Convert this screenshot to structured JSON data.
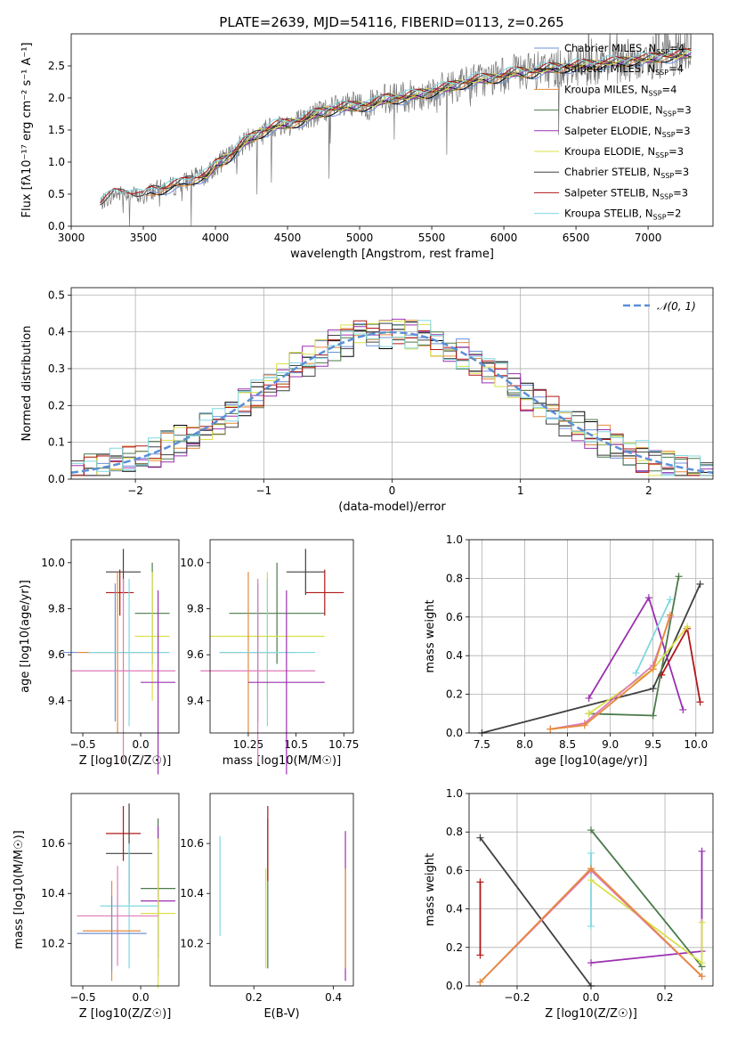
{
  "figure_title": "PLATE=2639, MJD=54116, FIBERID=0113, z=0.265",
  "chart_data": [
    {
      "id": "spectrum",
      "type": "line",
      "xlabel": "wavelength [Angstrom, rest frame]",
      "ylabel": "Flux [fλ10⁻¹⁷ erg cm⁻² s⁻¹ A⁻¹]",
      "xlim": [
        3000,
        7450
      ],
      "ylim": [
        0,
        3.0
      ],
      "xticks": [
        3000,
        3500,
        4000,
        4500,
        5000,
        5500,
        6000,
        6500,
        7000
      ],
      "yticks": [
        0.0,
        0.5,
        1.0,
        1.5,
        2.0,
        2.5
      ],
      "legend_position": "upper right",
      "model_curve": {
        "x": [
          3200,
          3300,
          3400,
          3500,
          3550,
          3650,
          3750,
          3850,
          3950,
          4000,
          4100,
          4200,
          4300,
          4400,
          4500,
          4600,
          4700,
          4800,
          4900,
          5000,
          5100,
          5200,
          5300,
          5400,
          5500,
          5600,
          5700,
          5800,
          5900,
          6000,
          6100,
          6200,
          6300,
          6400,
          6500,
          6600,
          6700,
          6800,
          6900,
          7000,
          7100,
          7200,
          7300
        ],
        "y": [
          0.35,
          0.5,
          0.52,
          0.45,
          0.55,
          0.6,
          0.65,
          0.75,
          0.8,
          0.95,
          1.1,
          1.3,
          1.45,
          1.55,
          1.6,
          1.65,
          1.75,
          1.82,
          1.85,
          1.88,
          1.9,
          2.0,
          2.0,
          2.05,
          2.1,
          2.15,
          2.22,
          2.28,
          2.3,
          2.35,
          2.4,
          2.4,
          2.45,
          2.48,
          2.5,
          2.52,
          2.55,
          2.55,
          2.6,
          2.6,
          2.65,
          2.65,
          2.7
        ]
      },
      "series": [
        {
          "name": "Chabrier MILES",
          "nssp": "4",
          "color": "#6f90d8"
        },
        {
          "name": "Salpeter MILES",
          "nssp": "4",
          "color": "#000000"
        },
        {
          "name": "Kroupa MILES",
          "nssp": "4",
          "color": "#e58a3a"
        },
        {
          "name": "Chabrier ELODIE",
          "nssp": "3",
          "color": "#4c7a4c"
        },
        {
          "name": "Salpeter ELODIE",
          "nssp": "3",
          "color": "#9b30b0"
        },
        {
          "name": "Kroupa ELODIE",
          "nssp": "3",
          "color": "#d9e04a"
        },
        {
          "name": "Chabrier STELIB",
          "nssp": "3",
          "color": "#404040"
        },
        {
          "name": "Salpeter STELIB",
          "nssp": "3",
          "color": "#b01818"
        },
        {
          "name": "Kroupa STELIB",
          "nssp": "2",
          "color": "#7fd8e0"
        }
      ]
    },
    {
      "id": "residuals",
      "type": "histogram",
      "xlabel": "(data-model)/error",
      "ylabel": "Normed distribution",
      "xlim": [
        -2.5,
        2.5
      ],
      "ylim": [
        0,
        0.52
      ],
      "xticks": [
        -2,
        -1,
        0,
        1,
        2
      ],
      "yticks": [
        0.0,
        0.1,
        0.2,
        0.3,
        0.4,
        0.5
      ],
      "grid": true,
      "legend_position": "upper right",
      "gauss_label": "𝒩(0, 1)",
      "gauss_color": "#5b8fd6"
    },
    {
      "id": "age_vs_Z",
      "type": "errorbar",
      "xlabel": "Z [log10(Z/Z☉)]",
      "ylabel": "age  [log10(age/yr)]",
      "xlim": [
        -0.6,
        0.33
      ],
      "ylim": [
        9.26,
        10.1
      ],
      "xticks": [
        -0.5,
        0.0
      ],
      "yticks": [
        9.4,
        9.6,
        9.8,
        10.0
      ],
      "points": [
        {
          "color": "#404040",
          "x": -0.15,
          "xerr": 0.15,
          "y": 9.96,
          "yerr": 0.1
        },
        {
          "color": "#b01818",
          "x": -0.18,
          "xerr": 0.12,
          "y": 9.87,
          "yerr": 0.1
        },
        {
          "color": "#4c7a4c",
          "x": 0.1,
          "xerr": 0.15,
          "y": 9.78,
          "yerr": 0.22
        },
        {
          "color": "#d9e04a",
          "x": 0.1,
          "xerr": 0.15,
          "y": 9.68,
          "yerr": 0.28
        },
        {
          "color": "#6f90d8",
          "x": -0.22,
          "xerr": 0.45,
          "y": 9.61,
          "yerr": 0.3
        },
        {
          "color": "#e58a3a",
          "x": -0.2,
          "xerr": 0.35,
          "y": 9.61,
          "yerr": 0.35
        },
        {
          "color": "#7fd8e0",
          "x": -0.1,
          "xerr": 0.35,
          "y": 9.61,
          "yerr": 0.32
        },
        {
          "color": "#e07ab8",
          "x": -0.15,
          "xerr": 0.45,
          "y": 9.53,
          "yerr": 0.4
        },
        {
          "color": "#9b30b0",
          "x": 0.15,
          "xerr": 0.15,
          "y": 9.48,
          "yerr": 0.4
        }
      ]
    },
    {
      "id": "age_vs_mass",
      "type": "errorbar",
      "xlabel": "mass [log10(M/M☉)]",
      "ylabel": "",
      "xlim": [
        10.05,
        10.8
      ],
      "ylim": [
        9.26,
        10.1
      ],
      "xticks": [
        10.25,
        10.5,
        10.75
      ],
      "yticks": [
        9.4,
        9.6,
        9.8,
        10.0
      ],
      "points": [
        {
          "color": "#404040",
          "x": 10.55,
          "xerr": 0.1,
          "y": 9.96,
          "yerr": 0.1
        },
        {
          "color": "#b01818",
          "x": 10.65,
          "xerr": 0.1,
          "y": 9.87,
          "yerr": 0.1
        },
        {
          "color": "#4c7a4c",
          "x": 10.4,
          "xerr": 0.25,
          "y": 9.78,
          "yerr": 0.22
        },
        {
          "color": "#d9e04a",
          "x": 10.35,
          "xerr": 0.3,
          "y": 9.68,
          "yerr": 0.28
        },
        {
          "color": "#6f90d8",
          "x": 10.3,
          "xerr": 0.2,
          "y": 9.61,
          "yerr": 0.3
        },
        {
          "color": "#e58a3a",
          "x": 10.25,
          "xerr": 0.15,
          "y": 9.61,
          "yerr": 0.35
        },
        {
          "color": "#7fd8e0",
          "x": 10.35,
          "xerr": 0.25,
          "y": 9.61,
          "yerr": 0.32
        },
        {
          "color": "#e07ab8",
          "x": 10.3,
          "xerr": 0.3,
          "y": 9.53,
          "yerr": 0.4
        },
        {
          "color": "#9b30b0",
          "x": 10.45,
          "xerr": 0.2,
          "y": 9.48,
          "yerr": 0.4
        }
      ]
    },
    {
      "id": "weight_vs_age",
      "type": "line",
      "xlabel": "age  [log10(age/yr)]",
      "ylabel": "mass weight",
      "xlim": [
        7.35,
        10.2
      ],
      "ylim": [
        0,
        1.0
      ],
      "xticks": [
        7.5,
        8.0,
        8.5,
        9.0,
        9.5,
        10.0
      ],
      "yticks": [
        0.0,
        0.2,
        0.4,
        0.6,
        0.8,
        1.0
      ],
      "grid": true,
      "series": [
        {
          "color": "#404040",
          "x": [
            7.5,
            9.5,
            10.05
          ],
          "y": [
            0.0,
            0.23,
            0.77
          ]
        },
        {
          "color": "#4c7a4c",
          "x": [
            8.75,
            9.5,
            9.8
          ],
          "y": [
            0.1,
            0.09,
            0.81
          ]
        },
        {
          "color": "#9b30b0",
          "x": [
            8.75,
            9.45,
            9.85
          ],
          "y": [
            0.18,
            0.7,
            0.12
          ]
        },
        {
          "color": "#b01818",
          "x": [
            9.6,
            9.9,
            10.05
          ],
          "y": [
            0.3,
            0.54,
            0.16
          ]
        },
        {
          "color": "#d9e04a",
          "x": [
            8.75,
            9.5,
            9.9
          ],
          "y": [
            0.1,
            0.33,
            0.55
          ]
        },
        {
          "color": "#7fd8e0",
          "x": [
            9.3,
            9.7
          ],
          "y": [
            0.31,
            0.69
          ]
        },
        {
          "color": "#e07ab8",
          "x": [
            8.3,
            8.7,
            9.5,
            9.7
          ],
          "y": [
            0.02,
            0.05,
            0.35,
            0.6
          ]
        },
        {
          "color": "#e58a3a",
          "x": [
            8.3,
            8.7,
            9.5,
            9.7
          ],
          "y": [
            0.02,
            0.04,
            0.33,
            0.61
          ]
        }
      ]
    },
    {
      "id": "mass_vs_Z",
      "type": "errorbar",
      "xlabel": "Z [log10(Z/Z☉)]",
      "ylabel": "mass [log10(M/M☉)]",
      "xlim": [
        -0.6,
        0.33
      ],
      "ylim": [
        10.03,
        10.8
      ],
      "xticks": [
        -0.5,
        0.0
      ],
      "yticks": [
        10.2,
        10.4,
        10.6
      ],
      "points": [
        {
          "color": "#b01818",
          "x": -0.15,
          "xerr": 0.15,
          "y": 10.64,
          "yerr": 0.11
        },
        {
          "color": "#404040",
          "x": -0.1,
          "xerr": 0.2,
          "y": 10.56,
          "yerr": 0.2
        },
        {
          "color": "#4c7a4c",
          "x": 0.15,
          "xerr": 0.15,
          "y": 10.42,
          "yerr": 0.28
        },
        {
          "color": "#9b30b0",
          "x": 0.15,
          "xerr": 0.15,
          "y": 10.37,
          "yerr": 0.3
        },
        {
          "color": "#7fd8e0",
          "x": -0.1,
          "xerr": 0.25,
          "y": 10.35,
          "yerr": 0.25
        },
        {
          "color": "#d9e04a",
          "x": 0.15,
          "xerr": 0.15,
          "y": 10.32,
          "yerr": 0.3
        },
        {
          "color": "#e07ab8",
          "x": -0.2,
          "xerr": 0.35,
          "y": 10.31,
          "yerr": 0.2
        },
        {
          "color": "#e58a3a",
          "x": -0.25,
          "xerr": 0.25,
          "y": 10.25,
          "yerr": 0.2
        },
        {
          "color": "#6f90d8",
          "x": -0.25,
          "xerr": 0.3,
          "y": 10.24,
          "yerr": 0.15
        }
      ]
    },
    {
      "id": "mass_vs_ebv",
      "type": "errorbar",
      "xlabel": "E(B-V)",
      "ylabel": "",
      "xlim": [
        0.09,
        0.45
      ],
      "ylim": [
        10.03,
        10.8
      ],
      "xticks": [
        0.2,
        0.4
      ],
      "yticks": [
        10.2,
        10.4,
        10.6
      ],
      "points": [
        {
          "color": "#7fd8e0",
          "x": 0.115,
          "y": 10.43,
          "yerr": 0.2
        },
        {
          "color": "#d9e04a",
          "x": 0.23,
          "y": 10.3,
          "yerr": 0.2
        },
        {
          "color": "#4c7a4c",
          "x": 0.235,
          "y": 10.4,
          "yerr": 0.3
        },
        {
          "color": "#b01818",
          "x": 0.235,
          "y": 10.6,
          "yerr": 0.15
        },
        {
          "color": "#9b30b0",
          "x": 0.43,
          "y": 10.35,
          "yerr": 0.3
        },
        {
          "color": "#e58a3a",
          "x": 0.43,
          "y": 10.3,
          "yerr": 0.2
        }
      ]
    },
    {
      "id": "weight_vs_Z",
      "type": "line",
      "xlabel": "Z [log10(Z/Z☉)]",
      "ylabel": "mass weight",
      "xlim": [
        -0.33,
        0.33
      ],
      "ylim": [
        0,
        1.0
      ],
      "xticks": [
        -0.2,
        0.0,
        0.2
      ],
      "yticks": [
        0.0,
        0.2,
        0.4,
        0.6,
        0.8,
        1.0
      ],
      "grid": true,
      "series": [
        {
          "color": "#404040",
          "x": [
            -0.3,
            0.0
          ],
          "y": [
            0.77,
            0.0
          ]
        },
        {
          "color": "#4c7a4c",
          "x": [
            0.0,
            0.3
          ],
          "y": [
            0.81,
            0.1
          ]
        },
        {
          "color": "#9b30b0",
          "x": [
            0.0,
            0.3,
            0.3
          ],
          "y": [
            0.12,
            0.18,
            0.7
          ]
        },
        {
          "color": "#7fd8e0",
          "x": [
            0.0,
            0.0
          ],
          "y": [
            0.31,
            0.69
          ]
        },
        {
          "color": "#d9e04a",
          "x": [
            0.0,
            0.3,
            0.3
          ],
          "y": [
            0.55,
            0.12,
            0.33
          ]
        },
        {
          "color": "#e07ab8",
          "x": [
            -0.3,
            0.0,
            0.3
          ],
          "y": [
            0.02,
            0.6,
            0.05
          ]
        },
        {
          "color": "#e58a3a",
          "x": [
            -0.3,
            0.0,
            0.3
          ],
          "y": [
            0.02,
            0.61,
            0.05
          ]
        },
        {
          "color": "#b01818",
          "x": [
            -0.3,
            -0.3
          ],
          "y": [
            0.16,
            0.54
          ]
        }
      ]
    }
  ]
}
